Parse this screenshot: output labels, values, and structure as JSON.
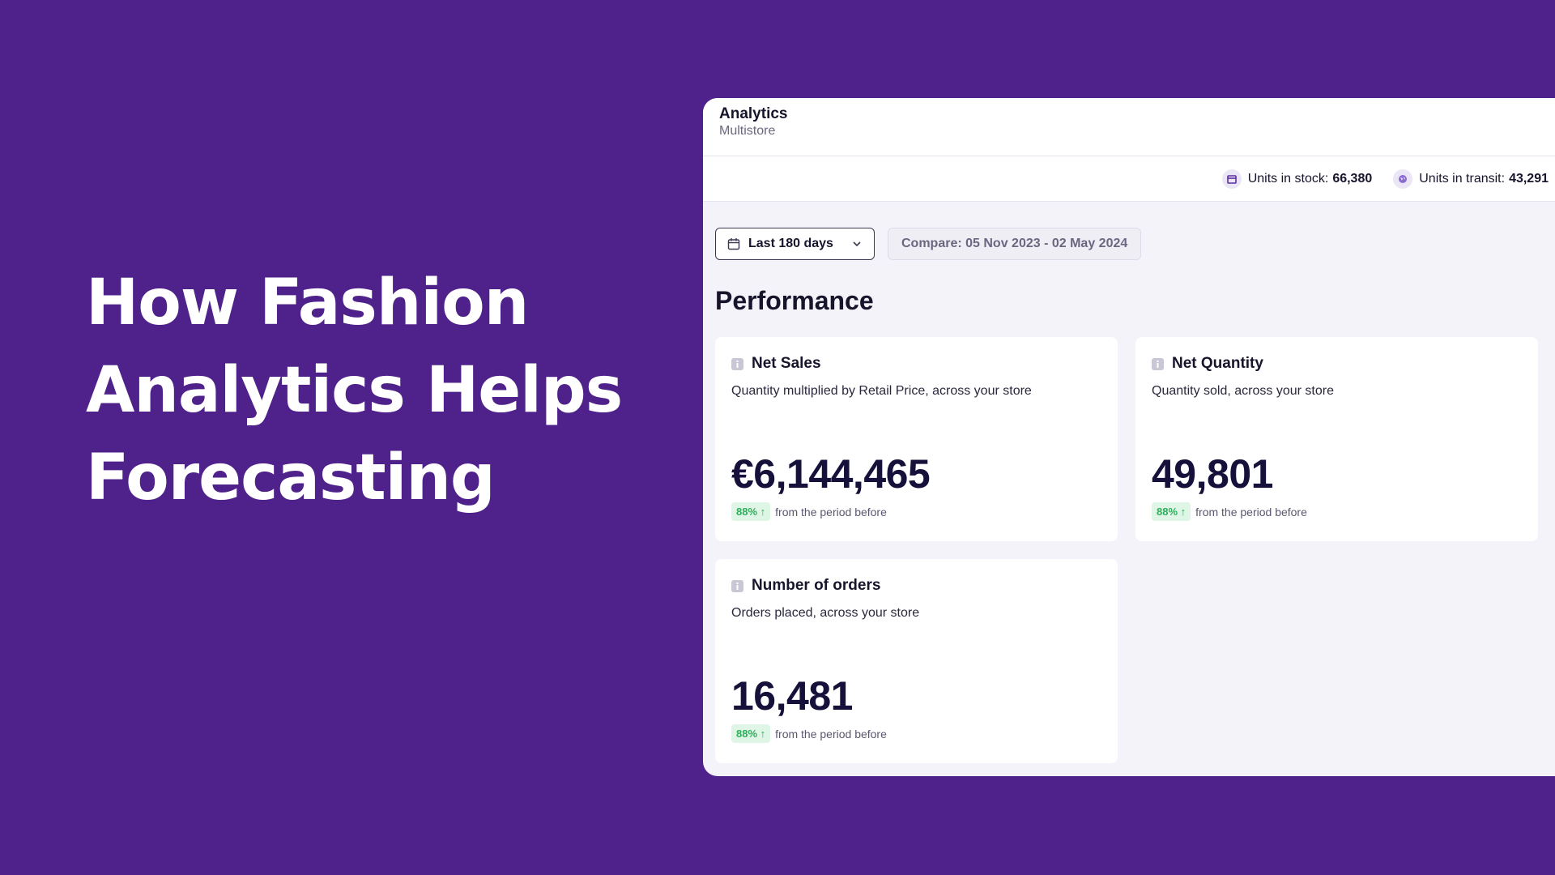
{
  "headline": {
    "lines": [
      "How Fashion",
      "Analytics Helps",
      "Forecasting"
    ]
  },
  "app": {
    "title": "Analytics",
    "subtitle": "Multistore"
  },
  "stock": {
    "in_stock_label": "Units in stock:",
    "in_stock_value": "66,380",
    "in_transit_label": "Units in transit:",
    "in_transit_value": "43,291"
  },
  "filters": {
    "date_range": "Last 180 days",
    "compare": "Compare: 05 Nov 2023 - 02 May 2024"
  },
  "section": {
    "title": "Performance"
  },
  "cards": [
    {
      "title": "Net Sales",
      "description": "Quantity multiplied by Retail Price, across your store",
      "value": "€6,144,465",
      "delta": "88% ↑",
      "delta_text": "from the period before"
    },
    {
      "title": "Net Quantity",
      "description": "Quantity sold, across your store",
      "value": "49,801",
      "delta": "88% ↑",
      "delta_text": "from the period before"
    },
    {
      "title": "Number of orders",
      "description": "Orders placed, across your store",
      "value": "16,481",
      "delta": "88% ↑",
      "delta_text": "from the period before"
    }
  ],
  "colors": {
    "background": "#4f218a",
    "panel": "#f4f3f9",
    "positive": "#2fae5c",
    "text_dark": "#15113a"
  },
  "icons": {
    "stock": "box-icon",
    "transit": "globe-icon",
    "calendar": "calendar-icon",
    "dropdown": "chevron-down-icon",
    "info": "info-icon"
  }
}
